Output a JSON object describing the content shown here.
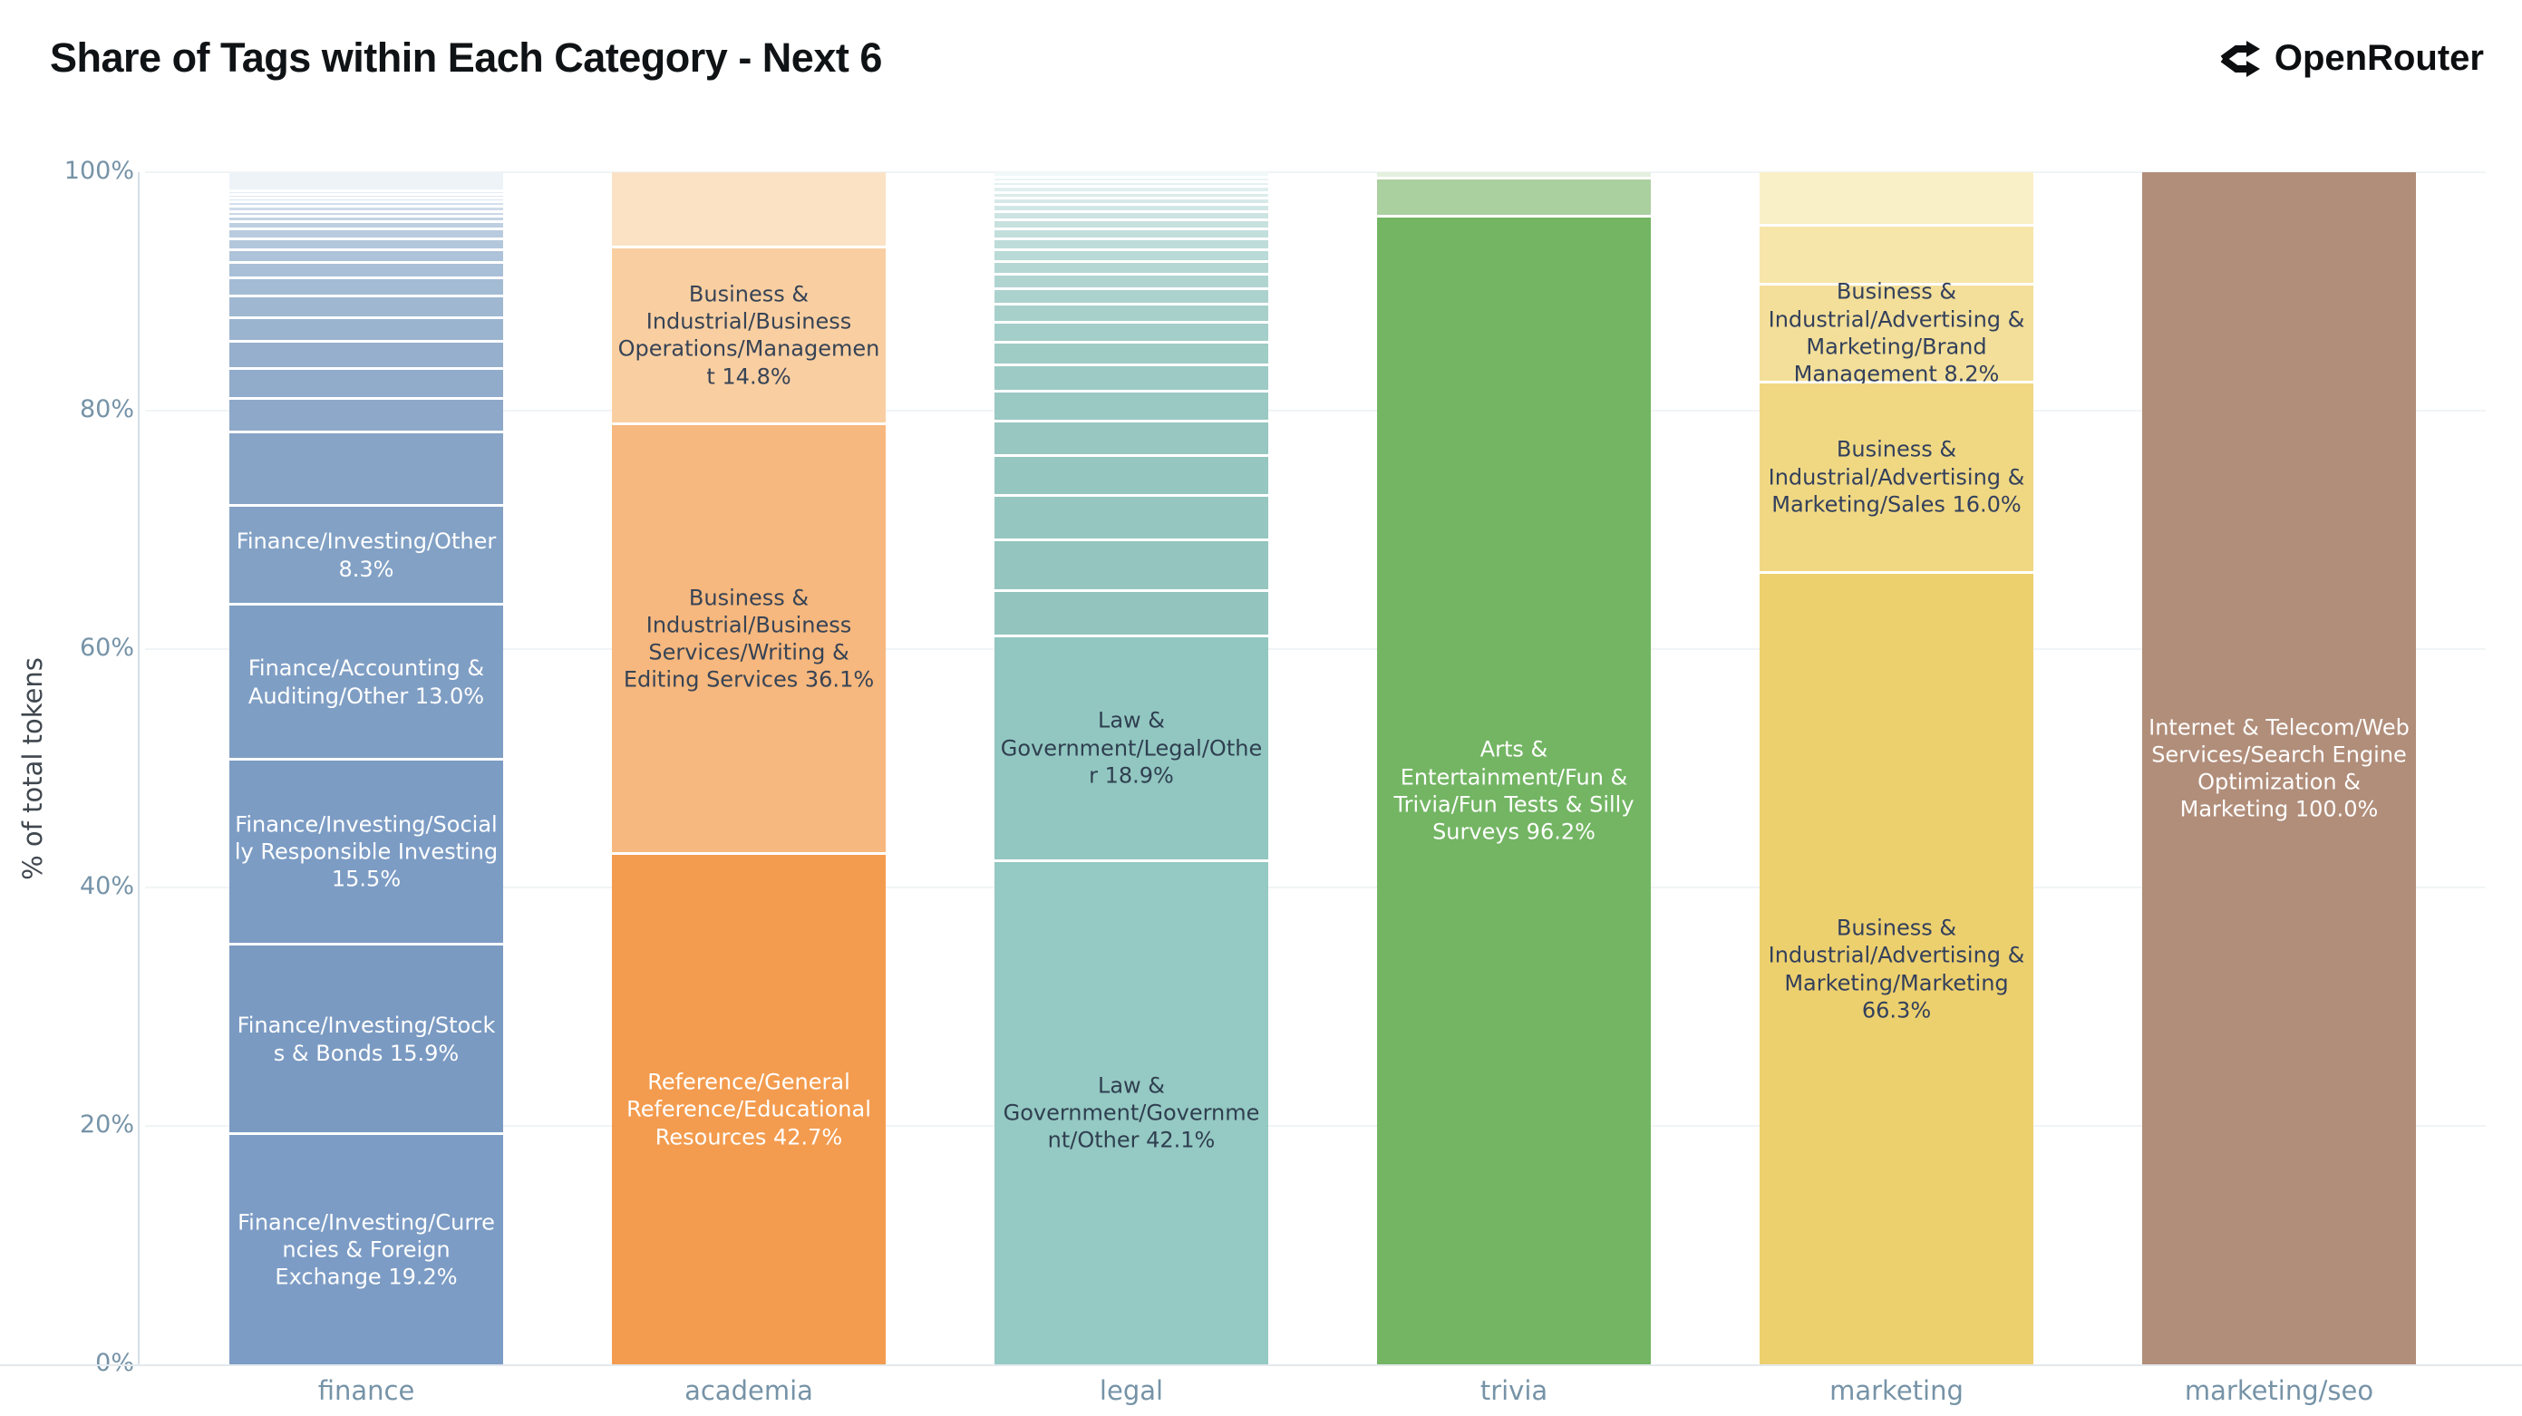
{
  "header": {
    "title": "Share of Tags within Each Category - Next 6",
    "brand": "OpenRouter"
  },
  "chart_data": {
    "type": "bar",
    "stacked": true,
    "title": "Share of Tags within Each Category - Next 6",
    "xlabel": "",
    "ylabel": "% of total tokens",
    "ylim": [
      0,
      100
    ],
    "grid": true,
    "legend": false,
    "ytick_values": [
      0,
      20,
      40,
      60,
      80,
      100
    ],
    "yticks": [
      "0%",
      "20%",
      "40%",
      "60%",
      "80%",
      "100%"
    ],
    "categories": [
      "finance",
      "academia",
      "legal",
      "trivia",
      "marketing",
      "marketing/seo"
    ],
    "bars": [
      {
        "category": "finance",
        "base_color": "#7c9cc4",
        "segments": [
          {
            "value": 1.7,
            "color": "#eef3f8"
          },
          {
            "value": 0.3,
            "color": "#e4ecf4"
          },
          {
            "value": 0.3,
            "color": "#dee7f1"
          },
          {
            "value": 0.3,
            "color": "#d9e3ee"
          },
          {
            "value": 0.4,
            "color": "#d3dfec"
          },
          {
            "value": 0.4,
            "color": "#cedbe9"
          },
          {
            "value": 0.4,
            "color": "#c9d7e7"
          },
          {
            "value": 0.5,
            "color": "#c3d3e4"
          },
          {
            "value": 0.6,
            "color": "#becfe1"
          },
          {
            "value": 0.8,
            "color": "#b8cbdf"
          },
          {
            "value": 0.9,
            "color": "#b3c7dc"
          },
          {
            "value": 1.1,
            "color": "#aec3d9"
          },
          {
            "value": 1.3,
            "color": "#a9bfd7"
          },
          {
            "value": 1.5,
            "color": "#a4bbd4"
          },
          {
            "value": 1.8,
            "color": "#9fb7d1"
          },
          {
            "value": 2.0,
            "color": "#9ab3cf"
          },
          {
            "value": 2.3,
            "color": "#96afcc"
          },
          {
            "value": 2.5,
            "color": "#91abca"
          },
          {
            "value": 2.8,
            "color": "#8da8c8"
          },
          {
            "value": 6.2,
            "color": "#87a4c6"
          },
          {
            "value": 8.3,
            "color": "#82a1c5",
            "text": "#ffffff",
            "label": "Finance/Investing/Other 8.3%"
          },
          {
            "value": 13.0,
            "color": "#7f9ec4",
            "text": "#ffffff",
            "label": "Finance/Accounting & Auditing/Other 13.0%"
          },
          {
            "value": 15.5,
            "color": "#7c9cc4",
            "text": "#ffffff",
            "label": "Finance/Investing/Socially Responsible Investing 15.5%"
          },
          {
            "value": 15.9,
            "color": "#7a9ac2",
            "text": "#ffffff",
            "label": "Finance/Investing/Stocks & Bonds 15.9%"
          },
          {
            "value": 19.2,
            "color": "#7c9cc5",
            "text": "#ffffff",
            "label": "Finance/Investing/Currencies & Foreign Exchange 19.2%"
          }
        ]
      },
      {
        "category": "academia",
        "base_color": "#f39c4f",
        "segments": [
          {
            "value": 6.4,
            "color": "#fbe2c5"
          },
          {
            "value": 14.8,
            "color": "#f9cfa2",
            "text": "#374355",
            "label": "Business & Industrial/Business Operations/Management 14.8%"
          },
          {
            "value": 36.1,
            "color": "#f6b87e",
            "text": "#374355",
            "label": "Business & Industrial/Business Services/Writing & Editing Services 36.1%"
          },
          {
            "value": 42.7,
            "color": "#f39c4f",
            "text": "#ffffff",
            "label": "Reference/General Reference/Educational Resources 42.7%"
          }
        ]
      },
      {
        "category": "legal",
        "base_color": "#93c8c2",
        "segments": [
          {
            "value": 0.5,
            "color": "#f0f8f8"
          },
          {
            "value": 0.4,
            "color": "#eaf4f4"
          },
          {
            "value": 0.4,
            "color": "#e5f1f1"
          },
          {
            "value": 0.5,
            "color": "#e0efee"
          },
          {
            "value": 0.5,
            "color": "#dbecea"
          },
          {
            "value": 0.5,
            "color": "#d6e9e8"
          },
          {
            "value": 0.6,
            "color": "#d1e7e5"
          },
          {
            "value": 0.7,
            "color": "#cce4e2"
          },
          {
            "value": 0.8,
            "color": "#c7e1df"
          },
          {
            "value": 0.8,
            "color": "#c2dfdc"
          },
          {
            "value": 0.9,
            "color": "#bedcd9"
          },
          {
            "value": 1.0,
            "color": "#b9dad6"
          },
          {
            "value": 1.1,
            "color": "#b5d7d3"
          },
          {
            "value": 1.2,
            "color": "#b0d5d1"
          },
          {
            "value": 1.3,
            "color": "#acd2ce"
          },
          {
            "value": 1.5,
            "color": "#a8d0cb"
          },
          {
            "value": 1.7,
            "color": "#a4cec9"
          },
          {
            "value": 1.9,
            "color": "#a0ccc6"
          },
          {
            "value": 2.2,
            "color": "#9dcac4"
          },
          {
            "value": 2.5,
            "color": "#9ac8c2"
          },
          {
            "value": 2.9,
            "color": "#98c7c1"
          },
          {
            "value": 3.3,
            "color": "#96c6c0"
          },
          {
            "value": 3.8,
            "color": "#95c6bf"
          },
          {
            "value": 4.2,
            "color": "#94c5bf"
          },
          {
            "value": 3.8,
            "color": "#93c4be"
          },
          {
            "value": 18.9,
            "color": "#92c7c1",
            "text": "#2f3f50",
            "label": "Law & Government/Legal/Other 18.9%"
          },
          {
            "value": 42.1,
            "color": "#95c9c3",
            "text": "#2f3f50",
            "label": "Law & Government/Government/Other 42.1%"
          }
        ]
      },
      {
        "category": "trivia",
        "base_color": "#73b563",
        "segments": [
          {
            "value": 0.6,
            "color": "#e3f0de"
          },
          {
            "value": 3.2,
            "color": "#abd09f"
          },
          {
            "value": 96.2,
            "color": "#73b563",
            "text": "#ffffff",
            "label": "Arts & Entertainment/Fun & Trivia/Fun Tests & Silly Surveys 96.2%"
          }
        ]
      },
      {
        "category": "marketing",
        "base_color": "#edd06e",
        "segments": [
          {
            "value": 4.6,
            "color": "#faf0c8"
          },
          {
            "value": 4.9,
            "color": "#f6e6aa"
          },
          {
            "value": 8.2,
            "color": "#f3df99",
            "text": "#33405c",
            "label": "Business & Industrial/Advertising & Marketing/Brand Management 8.2%"
          },
          {
            "value": 16.0,
            "color": "#f0d883",
            "text": "#33405c",
            "label": "Business & Industrial/Advertising & Marketing/Sales 16.0%"
          },
          {
            "value": 66.3,
            "color": "#edd06e",
            "text": "#33405c",
            "label": "Business & Industrial/Advertising & Marketing/Marketing 66.3%"
          }
        ]
      },
      {
        "category": "marketing/seo",
        "base_color": "#b18e7a",
        "segments": [
          {
            "value": 100.0,
            "color": "#b18e7a",
            "text": "#ffffff",
            "label": "Internet & Telecom/Web Services/Search Engine Optimization & Marketing 100.0%"
          }
        ]
      }
    ]
  }
}
